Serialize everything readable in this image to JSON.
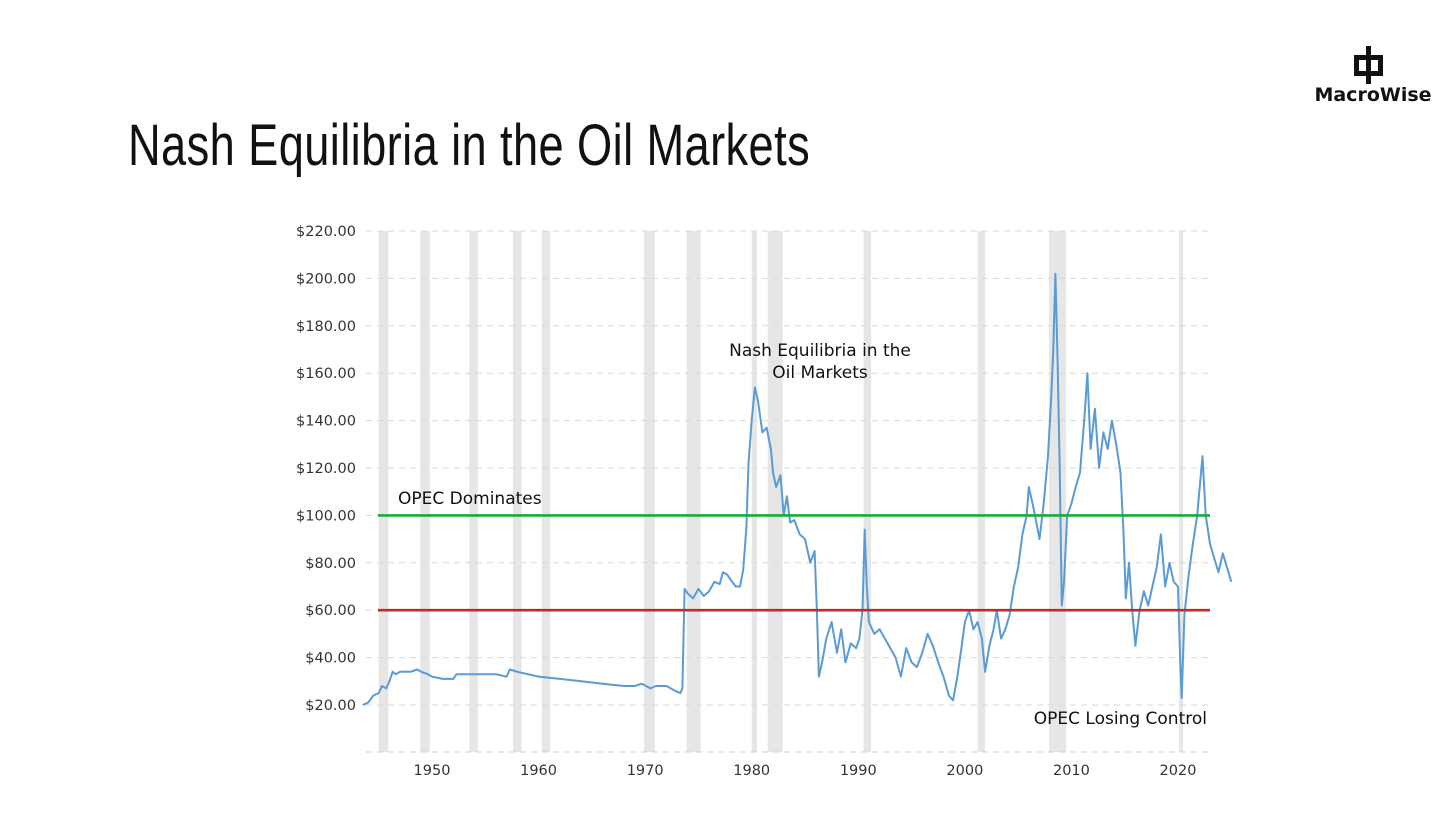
{
  "slide": {
    "title": "Nash Equilibria in the Oil Markets",
    "logo_text": "MacroWise"
  },
  "chart_data": {
    "type": "line",
    "title": "",
    "xlabel": "",
    "ylabel": "",
    "xlim": [
      1943.5,
      2023.0
    ],
    "ylim": [
      0,
      220
    ],
    "grid": "horizontal dashed",
    "y_ticks": [
      "$20.00",
      "$40.00",
      "$60.00",
      "$80.00",
      "$100.00",
      "$120.00",
      "$140.00",
      "$160.00",
      "$180.00",
      "$200.00",
      "$220.00"
    ],
    "y_tick_values": [
      20,
      40,
      60,
      80,
      100,
      120,
      140,
      160,
      180,
      200,
      220
    ],
    "x_ticks": [
      "1950",
      "1960",
      "1970",
      "1980",
      "1990",
      "2000",
      "2010",
      "2020"
    ],
    "x_tick_values": [
      1950,
      1960,
      1970,
      1980,
      1990,
      2000,
      2010,
      2020
    ],
    "recessions": [
      [
        1945.0,
        1945.9
      ],
      [
        1948.9,
        1949.8
      ],
      [
        1953.5,
        1954.3
      ],
      [
        1957.6,
        1958.4
      ],
      [
        1960.3,
        1961.1
      ],
      [
        1969.9,
        1970.9
      ],
      [
        1973.9,
        1975.2
      ],
      [
        1980.0,
        1980.5
      ],
      [
        1981.5,
        1982.9
      ],
      [
        1990.5,
        1991.2
      ],
      [
        2001.2,
        2001.9
      ],
      [
        2007.9,
        2009.5
      ],
      [
        2020.1,
        2020.4
      ]
    ],
    "series": [
      {
        "color": "#5b9bd5",
        "points": [
          [
            1943.5,
            20
          ],
          [
            1944.0,
            21
          ],
          [
            1944.5,
            24
          ],
          [
            1945.0,
            25
          ],
          [
            1945.3,
            28
          ],
          [
            1945.7,
            27
          ],
          [
            1946.0,
            30
          ],
          [
            1946.3,
            34
          ],
          [
            1946.6,
            33
          ],
          [
            1947.0,
            34
          ],
          [
            1948.0,
            34
          ],
          [
            1948.6,
            35
          ],
          [
            1949.0,
            34
          ],
          [
            1949.6,
            33
          ],
          [
            1950.0,
            32
          ],
          [
            1951.0,
            31
          ],
          [
            1952.0,
            31
          ],
          [
            1952.3,
            33
          ],
          [
            1953.0,
            33
          ],
          [
            1954.0,
            33
          ],
          [
            1955.0,
            33
          ],
          [
            1956.0,
            33
          ],
          [
            1957.0,
            32
          ],
          [
            1957.3,
            35
          ],
          [
            1958.0,
            34
          ],
          [
            1959.0,
            33
          ],
          [
            1960.0,
            32
          ],
          [
            1962.0,
            31
          ],
          [
            1964.0,
            30
          ],
          [
            1966.0,
            29
          ],
          [
            1968.0,
            28
          ],
          [
            1969.0,
            28
          ],
          [
            1969.7,
            29
          ],
          [
            1970.5,
            27
          ],
          [
            1971.0,
            28
          ],
          [
            1972.0,
            28
          ],
          [
            1972.8,
            26
          ],
          [
            1973.3,
            25
          ],
          [
            1973.5,
            27
          ],
          [
            1973.7,
            69
          ],
          [
            1974.0,
            67
          ],
          [
            1974.5,
            65
          ],
          [
            1975.0,
            69
          ],
          [
            1975.5,
            66
          ],
          [
            1976.0,
            68
          ],
          [
            1976.5,
            72
          ],
          [
            1977.0,
            71
          ],
          [
            1977.3,
            76
          ],
          [
            1977.7,
            75
          ],
          [
            1978.0,
            73
          ],
          [
            1978.5,
            70
          ],
          [
            1978.9,
            70
          ],
          [
            1979.2,
            77
          ],
          [
            1979.5,
            95
          ],
          [
            1979.7,
            122
          ],
          [
            1980.0,
            140
          ],
          [
            1980.3,
            154
          ],
          [
            1980.6,
            148
          ],
          [
            1981.0,
            135
          ],
          [
            1981.4,
            137
          ],
          [
            1981.8,
            128
          ],
          [
            1982.0,
            118
          ],
          [
            1982.3,
            112
          ],
          [
            1982.7,
            117
          ],
          [
            1983.0,
            100
          ],
          [
            1983.3,
            108
          ],
          [
            1983.6,
            97
          ],
          [
            1984.0,
            98
          ],
          [
            1984.5,
            92
          ],
          [
            1985.0,
            90
          ],
          [
            1985.5,
            80
          ],
          [
            1985.9,
            85
          ],
          [
            1986.1,
            62
          ],
          [
            1986.3,
            32
          ],
          [
            1986.6,
            38
          ],
          [
            1987.0,
            48
          ],
          [
            1987.5,
            55
          ],
          [
            1988.0,
            42
          ],
          [
            1988.4,
            52
          ],
          [
            1988.8,
            38
          ],
          [
            1989.3,
            46
          ],
          [
            1989.8,
            44
          ],
          [
            1990.1,
            48
          ],
          [
            1990.4,
            60
          ],
          [
            1990.6,
            94
          ],
          [
            1990.8,
            70
          ],
          [
            1991.0,
            55
          ],
          [
            1991.5,
            50
          ],
          [
            1992.0,
            52
          ],
          [
            1992.5,
            48
          ],
          [
            1993.0,
            44
          ],
          [
            1993.5,
            40
          ],
          [
            1994.0,
            32
          ],
          [
            1994.5,
            44
          ],
          [
            1995.0,
            38
          ],
          [
            1995.5,
            36
          ],
          [
            1996.0,
            42
          ],
          [
            1996.5,
            50
          ],
          [
            1997.0,
            45
          ],
          [
            1997.5,
            38
          ],
          [
            1998.0,
            32
          ],
          [
            1998.5,
            24
          ],
          [
            1998.9,
            22
          ],
          [
            1999.3,
            32
          ],
          [
            1999.7,
            45
          ],
          [
            2000.0,
            55
          ],
          [
            2000.4,
            60
          ],
          [
            2000.8,
            52
          ],
          [
            2001.2,
            55
          ],
          [
            2001.6,
            48
          ],
          [
            2001.9,
            34
          ],
          [
            2002.3,
            45
          ],
          [
            2002.7,
            52
          ],
          [
            2003.0,
            60
          ],
          [
            2003.4,
            48
          ],
          [
            2003.8,
            52
          ],
          [
            2004.2,
            58
          ],
          [
            2004.6,
            70
          ],
          [
            2005.0,
            78
          ],
          [
            2005.4,
            92
          ],
          [
            2005.8,
            100
          ],
          [
            2006.0,
            112
          ],
          [
            2006.4,
            104
          ],
          [
            2006.8,
            95
          ],
          [
            2007.0,
            90
          ],
          [
            2007.4,
            105
          ],
          [
            2007.8,
            125
          ],
          [
            2008.1,
            150
          ],
          [
            2008.3,
            170
          ],
          [
            2008.5,
            202
          ],
          [
            2008.7,
            165
          ],
          [
            2008.9,
            120
          ],
          [
            2009.1,
            62
          ],
          [
            2009.3,
            72
          ],
          [
            2009.6,
            100
          ],
          [
            2010.0,
            105
          ],
          [
            2010.4,
            112
          ],
          [
            2010.8,
            118
          ],
          [
            2011.2,
            140
          ],
          [
            2011.5,
            160
          ],
          [
            2011.8,
            128
          ],
          [
            2012.2,
            145
          ],
          [
            2012.6,
            120
          ],
          [
            2013.0,
            135
          ],
          [
            2013.4,
            128
          ],
          [
            2013.8,
            140
          ],
          [
            2014.2,
            130
          ],
          [
            2014.6,
            118
          ],
          [
            2014.9,
            92
          ],
          [
            2015.1,
            65
          ],
          [
            2015.4,
            80
          ],
          [
            2015.7,
            60
          ],
          [
            2016.0,
            45
          ],
          [
            2016.4,
            60
          ],
          [
            2016.8,
            68
          ],
          [
            2017.2,
            62
          ],
          [
            2017.6,
            70
          ],
          [
            2018.0,
            78
          ],
          [
            2018.4,
            92
          ],
          [
            2018.8,
            70
          ],
          [
            2019.2,
            80
          ],
          [
            2019.6,
            72
          ],
          [
            2020.0,
            70
          ],
          [
            2020.2,
            40
          ],
          [
            2020.35,
            23
          ],
          [
            2020.6,
            58
          ],
          [
            2021.0,
            75
          ],
          [
            2021.4,
            88
          ],
          [
            2021.8,
            100
          ],
          [
            2022.0,
            110
          ],
          [
            2022.3,
            125
          ],
          [
            2022.6,
            100
          ],
          [
            2023.0,
            88
          ],
          [
            2023.4,
            82
          ],
          [
            2023.8,
            76
          ],
          [
            2024.2,
            84
          ],
          [
            2024.6,
            78
          ],
          [
            2025.0,
            72
          ]
        ]
      }
    ],
    "reference_lines": [
      {
        "y": 100,
        "color": "#1aaa37"
      },
      {
        "y": 60,
        "color": "#c0282d"
      }
    ],
    "annotations": {
      "opec_dominates": "OPEC Dominates",
      "nash_line1": "Nash Equilibria in the",
      "nash_line2": "Oil Markets",
      "opec_losing": "OPEC Losing Control"
    }
  }
}
